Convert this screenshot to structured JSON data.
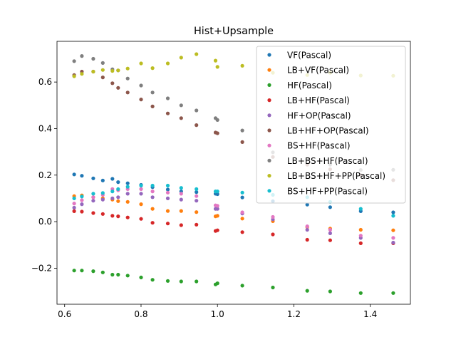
{
  "chart_data": {
    "type": "scatter",
    "title": "Hist+Upsample",
    "xlabel": "",
    "ylabel": "",
    "xlim": [
      0.58,
      1.505
    ],
    "ylim": [
      -0.355,
      0.775
    ],
    "xticks": [
      0.6,
      0.8,
      1.0,
      1.2,
      1.4
    ],
    "yticks": [
      -0.2,
      0.0,
      0.2,
      0.4,
      0.6
    ],
    "xtick_labels": [
      "0.6",
      "0.8",
      "1.0",
      "1.2",
      "1.4"
    ],
    "ytick_labels": [
      "−0.2",
      "0.0",
      "0.2",
      "0.4",
      "0.6"
    ],
    "grid": false,
    "legend_position": "upper right",
    "x": [
      0.625,
      0.645,
      0.675,
      0.7,
      0.725,
      0.74,
      0.765,
      0.8,
      0.83,
      0.87,
      0.905,
      0.945,
      0.995,
      1.0,
      1.065,
      1.145,
      1.235,
      1.295,
      1.375,
      1.46
    ],
    "series": [
      {
        "name": "VF(Pascal)",
        "color": "#1f77b4",
        "values": [
          0.203,
          0.197,
          0.186,
          0.177,
          0.184,
          0.17,
          0.165,
          0.158,
          0.148,
          0.138,
          0.13,
          0.127,
          0.12,
          0.118,
          0.104,
          0.088,
          0.073,
          0.062,
          0.045,
          0.04
        ]
      },
      {
        "name": "LB+VF(Pascal)",
        "color": "#ff7f0e",
        "values": [
          0.11,
          0.113,
          0.105,
          0.1,
          0.095,
          0.088,
          0.085,
          0.075,
          0.055,
          0.046,
          0.046,
          0.041,
          0.023,
          0.025,
          0.013,
          0.002,
          -0.023,
          -0.03,
          -0.035,
          -0.037
        ]
      },
      {
        "name": "HF(Pascal)",
        "color": "#2ca02c",
        "values": [
          -0.21,
          -0.21,
          -0.213,
          -0.218,
          -0.228,
          -0.228,
          -0.232,
          -0.24,
          -0.25,
          -0.255,
          -0.257,
          -0.257,
          -0.27,
          -0.265,
          -0.275,
          -0.283,
          -0.297,
          -0.3,
          -0.307,
          -0.307
        ]
      },
      {
        "name": "LB+HF(Pascal)",
        "color": "#d62728",
        "values": [
          0.045,
          0.043,
          0.037,
          0.033,
          0.025,
          0.023,
          0.018,
          0.012,
          -0.005,
          -0.008,
          -0.015,
          -0.013,
          -0.04,
          -0.037,
          -0.045,
          -0.055,
          -0.078,
          -0.08,
          -0.093,
          -0.093
        ]
      },
      {
        "name": "HF+OP(Pascal)",
        "color": "#9467bd",
        "values": [
          0.06,
          0.075,
          0.09,
          0.095,
          0.1,
          0.105,
          0.12,
          0.12,
          0.105,
          0.1,
          0.095,
          0.09,
          0.055,
          0.055,
          0.035,
          0.01,
          -0.035,
          -0.05,
          -0.07,
          -0.09
        ]
      },
      {
        "name": "LB+HF+OP(Pascal)",
        "color": "#8c564b",
        "values": [
          0.63,
          0.645,
          0.645,
          0.62,
          0.595,
          0.575,
          0.555,
          0.525,
          0.495,
          0.465,
          0.445,
          0.415,
          0.383,
          0.38,
          0.342,
          0.278,
          0.245,
          0.225,
          0.2,
          0.178
        ]
      },
      {
        "name": "BS+HF(Pascal)",
        "color": "#e377c2",
        "values": [
          0.078,
          0.092,
          0.105,
          0.115,
          0.14,
          0.135,
          0.14,
          0.14,
          0.13,
          0.125,
          0.12,
          0.11,
          0.07,
          0.068,
          0.04,
          0.02,
          -0.02,
          -0.035,
          -0.06,
          -0.07
        ]
      },
      {
        "name": "LB+BS+HF(Pascal)",
        "color": "#7f7f7f",
        "values": [
          0.69,
          0.712,
          0.7,
          0.682,
          0.655,
          0.65,
          0.615,
          0.585,
          0.555,
          0.53,
          0.5,
          0.478,
          0.445,
          0.437,
          0.392,
          0.298,
          0.268,
          0.245,
          0.222,
          0.223
        ]
      },
      {
        "name": "LB+BS+HF+PP(Pascal)",
        "color": "#bcbd22",
        "values": [
          0.625,
          0.635,
          0.645,
          0.652,
          0.648,
          0.65,
          0.658,
          0.68,
          0.66,
          0.68,
          0.705,
          0.72,
          0.692,
          0.665,
          0.67,
          0.64,
          0.63,
          0.64,
          0.628,
          0.627
        ]
      },
      {
        "name": "BS+HF+PP(Pascal)",
        "color": "#17becf",
        "values": [
          0.1,
          0.108,
          0.12,
          0.123,
          0.13,
          0.14,
          0.15,
          0.155,
          0.155,
          0.155,
          0.145,
          0.14,
          0.13,
          0.13,
          0.125,
          0.115,
          0.105,
          0.085,
          0.055,
          0.025
        ]
      }
    ]
  }
}
